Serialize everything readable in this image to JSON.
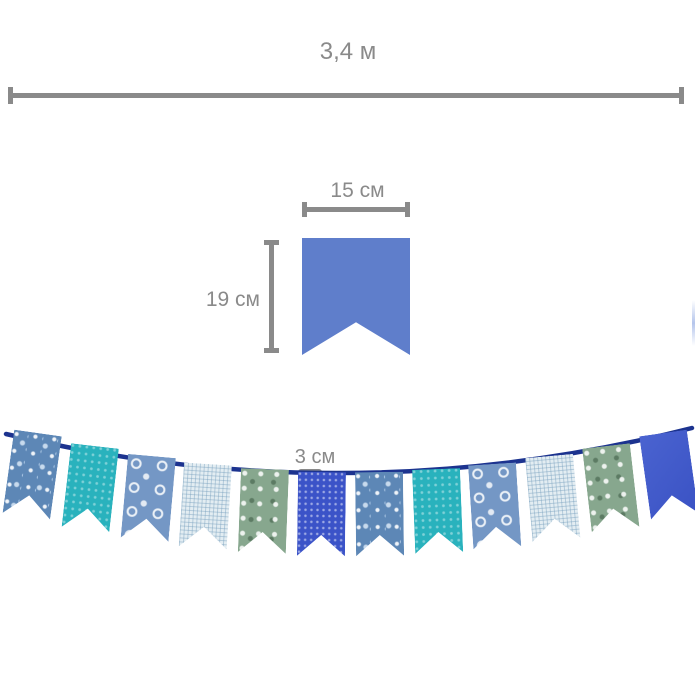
{
  "dimensions": {
    "total_length_label": "3,4 м",
    "flag_width_label": "15 см",
    "flag_height_label": "19 см",
    "gap_label": "3 см"
  },
  "colors": {
    "measurement_gray": "#8a8a8a",
    "diagram_flag_blue": "#5f7ecb",
    "string_navy": "#1c338f"
  },
  "garland": {
    "flag_count": 12,
    "flags": [
      {
        "pattern": "blue-floral"
      },
      {
        "pattern": "teal-dots"
      },
      {
        "pattern": "blue-circles"
      },
      {
        "pattern": "light-check"
      },
      {
        "pattern": "green-floral"
      },
      {
        "pattern": "royal-dots"
      },
      {
        "pattern": "blue-floral"
      },
      {
        "pattern": "teal-dots"
      },
      {
        "pattern": "blue-circles"
      },
      {
        "pattern": "light-check"
      },
      {
        "pattern": "green-floral"
      },
      {
        "pattern": "royal-solid"
      }
    ]
  }
}
